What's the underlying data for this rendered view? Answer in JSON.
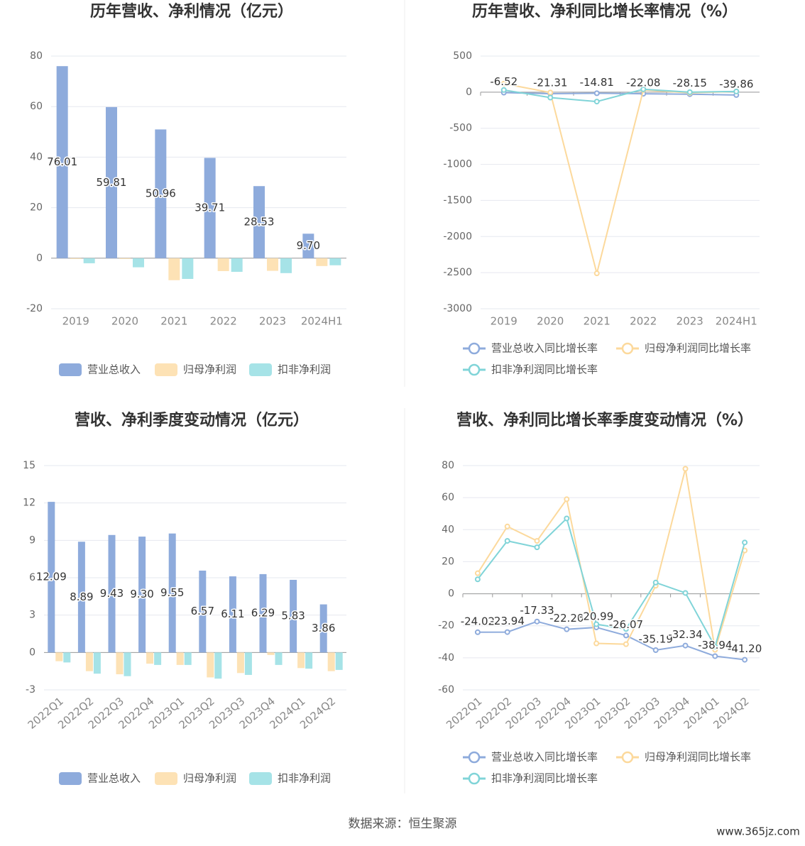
{
  "chart_data": [
    {
      "type": "bar",
      "title": "历年营收、净利情况（亿元）",
      "categories": [
        "2019",
        "2020",
        "2021",
        "2022",
        "2023",
        "2024H1"
      ],
      "series": [
        {
          "name": "营业总收入",
          "color": "#8eabdc",
          "values": [
            76.01,
            59.81,
            50.96,
            39.71,
            28.53,
            9.7
          ],
          "value_labels": [
            "76.01",
            "59.81",
            "50.96",
            "39.71",
            "28.53",
            "9.70"
          ]
        },
        {
          "name": "归母净利润",
          "color": "#fde2b5",
          "values": [
            -0.3,
            -0.3,
            -8.7,
            -5.1,
            -5.0,
            -3.1
          ]
        },
        {
          "name": "扣非净利润",
          "color": "#a6e3e7",
          "values": [
            -2.0,
            -3.6,
            -8.2,
            -5.4,
            -5.9,
            -2.8
          ]
        }
      ],
      "ylim": [
        -20,
        80
      ],
      "yticks": [
        -20,
        0,
        20,
        40,
        60,
        80
      ],
      "grid": true
    },
    {
      "type": "line",
      "title": "历年营收、净利同比增长率情况（%）",
      "categories": [
        "2019",
        "2020",
        "2021",
        "2022",
        "2023",
        "2024H1"
      ],
      "series": [
        {
          "name": "营业总收入同比增长率",
          "color": "#8eabdc",
          "values": [
            -6.52,
            -21.31,
            -14.81,
            -22.08,
            -28.15,
            -39.86
          ]
        },
        {
          "name": "归母净利润同比增长率",
          "color": "#fcd99c",
          "values": [
            118,
            -5,
            -2510,
            30,
            -10,
            10
          ]
        },
        {
          "name": "扣非净利润同比增长率",
          "color": "#80d4d8",
          "values": [
            30,
            -75,
            -130,
            40,
            0,
            10
          ]
        }
      ],
      "ylim": [
        -3000,
        500
      ],
      "yticks": [
        -3000,
        -2500,
        -2000,
        -1500,
        -1000,
        -500,
        0,
        500
      ],
      "grid": true
    },
    {
      "type": "bar",
      "title": "营收、净利季度变动情况（亿元）",
      "categories": [
        "2022Q1",
        "2022Q2",
        "2022Q3",
        "2022Q4",
        "2023Q1",
        "2023Q2",
        "2023Q3",
        "2023Q4",
        "2024Q1",
        "2024Q2"
      ],
      "series": [
        {
          "name": "营业总收入",
          "color": "#8eabdc",
          "values": [
            12.09,
            8.89,
            9.43,
            9.3,
            9.55,
            6.57,
            6.11,
            6.29,
            5.83,
            3.86
          ],
          "value_labels": [
            "12.09",
            "8.89",
            "9.43",
            "9.30",
            "9.55",
            "6.57",
            "6.11",
            "6.29",
            "5.83",
            "3.86"
          ]
        },
        {
          "name": "归母净利润",
          "color": "#fde2b5",
          "values": [
            -0.7,
            -1.5,
            -1.75,
            -0.9,
            -1.0,
            -2.0,
            -1.65,
            -0.2,
            -1.25,
            -1.5
          ]
        },
        {
          "name": "扣非净利润",
          "color": "#a6e3e7",
          "values": [
            -0.8,
            -1.7,
            -1.9,
            -1.0,
            -1.0,
            -2.1,
            -1.8,
            -1.0,
            -1.3,
            -1.4
          ]
        }
      ],
      "ylim": [
        -3,
        15
      ],
      "yticks": [
        -3,
        0,
        3,
        6,
        9,
        12,
        15
      ],
      "grid": true
    },
    {
      "type": "line",
      "title": "营收、净利同比增长率季度变动情况（%）",
      "categories": [
        "2022Q1",
        "2022Q2",
        "2022Q3",
        "2022Q4",
        "2023Q1",
        "2023Q2",
        "2023Q3",
        "2023Q4",
        "2024Q1",
        "2024Q2"
      ],
      "series": [
        {
          "name": "营业总收入同比增长率",
          "color": "#8eabdc",
          "values": [
            -24.02,
            -23.94,
            -17.33,
            -22.2,
            -20.99,
            -26.07,
            -35.19,
            -32.34,
            -38.94,
            -41.2
          ],
          "value_labels": [
            "-24.02",
            "-23.94",
            "-17.33",
            "-22.20",
            "-20.99",
            "-26.07",
            "-35.19",
            "-32.34",
            "-38.94",
            "-41.20"
          ]
        },
        {
          "name": "归母净利润同比增长率",
          "color": "#fcd99c",
          "values": [
            12.8,
            42,
            33,
            59,
            -31,
            -31.5,
            5,
            78,
            -35,
            27
          ]
        },
        {
          "name": "扣非净利润同比增长率",
          "color": "#80d4d8",
          "values": [
            9,
            33,
            29,
            47,
            -19,
            -22,
            7,
            0.5,
            -33,
            32
          ]
        }
      ],
      "ylim": [
        -60,
        80
      ],
      "yticks": [
        -60,
        -40,
        -20,
        0,
        20,
        40,
        60,
        80
      ],
      "grid": true
    }
  ],
  "source": "数据来源：恒生聚源",
  "watermark": "www.365jz.com"
}
